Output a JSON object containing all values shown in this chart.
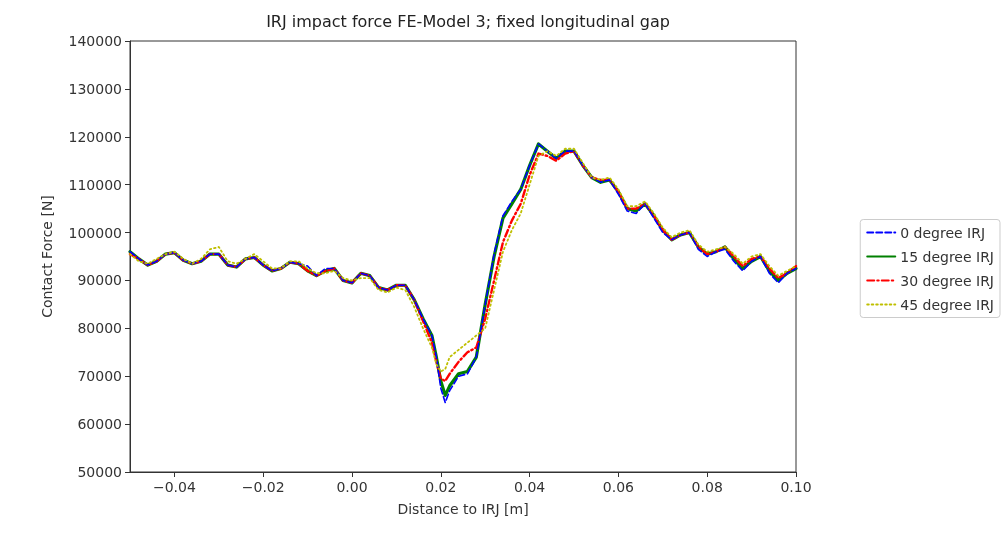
{
  "chart_data": {
    "type": "line",
    "title": "IRJ impact force FE-Model 3; fixed longitudinal gap",
    "xlabel": "Distance to IRJ [m]",
    "ylabel": "Contact Force [N]",
    "x": [
      -0.05,
      -0.048,
      -0.046,
      -0.044,
      -0.042,
      -0.04,
      -0.038,
      -0.036,
      -0.034,
      -0.032,
      -0.03,
      -0.028,
      -0.026,
      -0.024,
      -0.022,
      -0.02,
      -0.018,
      -0.016,
      -0.014,
      -0.012,
      -0.01,
      -0.008,
      -0.006,
      -0.004,
      -0.002,
      0,
      0.002,
      0.004,
      0.006,
      0.008,
      0.01,
      0.012,
      0.014,
      0.016,
      0.018,
      0.019,
      0.02,
      0.021,
      0.022,
      0.024,
      0.026,
      0.028,
      0.03,
      0.032,
      0.034,
      0.036,
      0.038,
      0.04,
      0.042,
      0.044,
      0.046,
      0.048,
      0.05,
      0.052,
      0.054,
      0.056,
      0.058,
      0.06,
      0.062,
      0.064,
      0.066,
      0.068,
      0.07,
      0.072,
      0.074,
      0.076,
      0.078,
      0.08,
      0.082,
      0.084,
      0.086,
      0.088,
      0.09,
      0.092,
      0.094,
      0.096,
      0.098,
      0.1
    ],
    "series": [
      {
        "name": "0 degree IRJ",
        "color": "#0000ff",
        "line_style": "dashed",
        "values": [
          96000,
          94500,
          93200,
          94000,
          95500,
          95800,
          94200,
          93500,
          94000,
          95500,
          95500,
          93200,
          92800,
          94500,
          94800,
          93200,
          92000,
          92500,
          93800,
          93500,
          93000,
          91000,
          92500,
          92500,
          90000,
          89500,
          91500,
          91000,
          88500,
          88000,
          89000,
          89000,
          86000,
          82000,
          78500,
          74000,
          67500,
          64500,
          67000,
          70000,
          70500,
          74000,
          85000,
          95500,
          103500,
          106500,
          109000,
          114000,
          118500,
          117000,
          115500,
          117000,
          117000,
          114000,
          111500,
          110500,
          111000,
          108000,
          104500,
          104000,
          106000,
          103000,
          100000,
          98500,
          99500,
          100000,
          96500,
          95000,
          96000,
          96500,
          94000,
          92000,
          94000,
          95000,
          91500,
          89500,
          91500,
          92500
        ]
      },
      {
        "name": "15 degree IRJ",
        "color": "#008000",
        "line_style": "solid",
        "values": [
          96000,
          94500,
          93200,
          94000,
          95500,
          95800,
          94200,
          93500,
          94000,
          95500,
          95500,
          93200,
          92800,
          94500,
          94800,
          93200,
          92000,
          92500,
          93800,
          93500,
          92000,
          91000,
          92000,
          92500,
          90000,
          89500,
          91500,
          91000,
          88500,
          88000,
          89000,
          89000,
          86000,
          82000,
          78500,
          74000,
          69000,
          66000,
          68000,
          70500,
          71000,
          74000,
          85000,
          95000,
          103000,
          106000,
          109000,
          114000,
          118500,
          117000,
          115500,
          117000,
          117000,
          114000,
          111500,
          110500,
          111000,
          108500,
          105000,
          104500,
          106000,
          103500,
          100500,
          98500,
          99500,
          100000,
          97000,
          95500,
          96000,
          97000,
          94500,
          92500,
          94000,
          95000,
          92000,
          90000,
          91500,
          92500
        ]
      },
      {
        "name": "30 degree IRJ",
        "color": "#ff0000",
        "line_style": "dashdot",
        "values": [
          95500,
          94500,
          93200,
          94000,
          95500,
          95800,
          94200,
          93500,
          94000,
          95500,
          95500,
          93200,
          92800,
          94500,
          94800,
          93200,
          92000,
          92500,
          93800,
          93500,
          92000,
          91000,
          92000,
          92500,
          90000,
          89500,
          91500,
          91000,
          88500,
          88000,
          89000,
          89000,
          86000,
          81500,
          77000,
          73000,
          69500,
          69000,
          70500,
          73000,
          75000,
          76000,
          82000,
          90000,
          98000,
          102500,
          106000,
          112000,
          116500,
          116000,
          115000,
          116500,
          117000,
          114000,
          111500,
          111000,
          111000,
          108500,
          105000,
          105000,
          106000,
          103500,
          100500,
          98500,
          99500,
          100000,
          97000,
          95500,
          96000,
          97000,
          95000,
          93000,
          94500,
          95000,
          92500,
          90500,
          91500,
          93000
        ]
      },
      {
        "name": "45 degree IRJ",
        "color": "#bfbf00",
        "line_style": "dotted",
        "values": [
          95500,
          94000,
          93500,
          94500,
          95500,
          96000,
          94500,
          93500,
          94500,
          96500,
          97000,
          94000,
          93500,
          94500,
          95500,
          94000,
          92500,
          92500,
          94000,
          94000,
          92500,
          91500,
          91500,
          92000,
          90500,
          90000,
          90500,
          90500,
          88000,
          87500,
          88500,
          88000,
          84500,
          80000,
          76000,
          72500,
          71000,
          71500,
          74000,
          75500,
          77000,
          78500,
          80000,
          88000,
          96000,
          100500,
          104000,
          110000,
          116000,
          117000,
          116000,
          117500,
          117500,
          114500,
          111500,
          111000,
          111500,
          109000,
          105500,
          105500,
          106500,
          104000,
          101000,
          99000,
          100000,
          100500,
          97500,
          96000,
          96500,
          97000,
          95500,
          93500,
          95000,
          95500,
          93000,
          91000,
          92000,
          93000
        ]
      }
    ],
    "xlim": [
      -0.05,
      0.1
    ],
    "xticks": [
      {
        "value": -0.04,
        "label": "−0.04"
      },
      {
        "value": -0.02,
        "label": "−0.02"
      },
      {
        "value": 0,
        "label": "0.00"
      },
      {
        "value": 0.02,
        "label": "0.02"
      },
      {
        "value": 0.04,
        "label": "0.04"
      },
      {
        "value": 0.06,
        "label": "0.06"
      },
      {
        "value": 0.08,
        "label": "0.08"
      },
      {
        "value": 0.1,
        "label": "0.10"
      }
    ],
    "ylim": [
      50000,
      140000
    ],
    "yticks": [
      50000,
      60000,
      70000,
      80000,
      90000,
      100000,
      110000,
      120000,
      130000,
      140000
    ],
    "legend": "right",
    "marker": "none"
  }
}
